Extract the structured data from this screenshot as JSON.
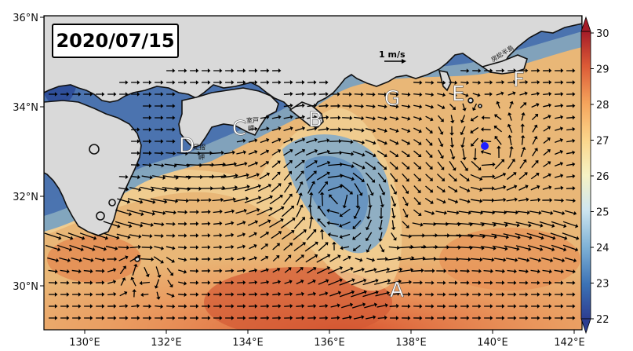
{
  "date_label": "2020/07/15",
  "scale_label": "1 m/s",
  "x_ticks": [
    "130°E",
    "132°E",
    "134°E",
    "136°E",
    "138°E",
    "140°E",
    "142°E"
  ],
  "y_ticks": [
    "36°N",
    "34°N",
    "32°N",
    "30°N"
  ],
  "colorbar_ticks": [
    "30",
    "29",
    "28",
    "27",
    "26",
    "25",
    "24",
    "23",
    "22"
  ],
  "point_labels": [
    "A",
    "B",
    "C",
    "D",
    "E",
    "F",
    "G"
  ],
  "place_labels": {
    "muroto_1": "室戸",
    "muroto_2": "岬",
    "ashizuri_1": "足摺",
    "ashizuri_2": "岬",
    "boso": "房総半島"
  },
  "colors": {
    "land": "#d9d9d9",
    "marker": "#1f1fff"
  }
}
